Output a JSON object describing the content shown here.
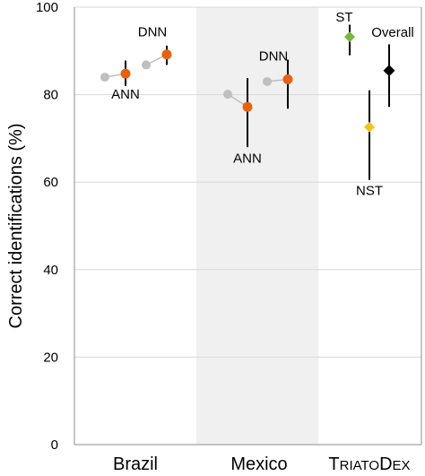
{
  "chart_data": {
    "type": "scatter",
    "ylabel": "Correct identifications (%)",
    "ylim": [
      0,
      100
    ],
    "yticks": [
      0,
      20,
      40,
      60,
      80,
      100
    ],
    "grid": true,
    "categories": [
      "Brazil",
      "Mexico",
      "TriatoDex"
    ],
    "highlighted_category": "Mexico",
    "highlight_color": "#f0f0f0",
    "colors": {
      "reference": "#bfbfbf",
      "model": "#e8620e",
      "st": "#77b83a",
      "nst": "#f2c21b",
      "overall": "#000000"
    },
    "points": [
      {
        "category": "Brazil",
        "model": "ANN",
        "value": 84.0,
        "kind": "reference"
      },
      {
        "category": "Brazil",
        "model": "ANN",
        "value": 84.8,
        "err_low": 82.0,
        "err_high": 87.8,
        "kind": "model",
        "label": "ANN"
      },
      {
        "category": "Brazil",
        "model": "DNN",
        "value": 86.8,
        "kind": "reference"
      },
      {
        "category": "Brazil",
        "model": "DNN",
        "value": 89.2,
        "err_low": 86.8,
        "err_high": 91.2,
        "kind": "model",
        "label": "DNN"
      },
      {
        "category": "Mexico",
        "model": "ANN",
        "value": 80.1,
        "kind": "reference"
      },
      {
        "category": "Mexico",
        "model": "ANN",
        "value": 77.2,
        "err_low": 68.0,
        "err_high": 83.8,
        "kind": "model",
        "label": "ANN"
      },
      {
        "category": "Mexico",
        "model": "DNN",
        "value": 83.0,
        "kind": "reference"
      },
      {
        "category": "Mexico",
        "model": "DNN",
        "value": 83.5,
        "err_low": 76.8,
        "err_high": 88.0,
        "kind": "model",
        "label": "DNN"
      },
      {
        "category": "TriatoDex",
        "model": "ST",
        "value": 93.2,
        "err_low": 89.0,
        "err_high": 96.0,
        "kind": "st",
        "label": "ST"
      },
      {
        "category": "TriatoDex",
        "model": "NST",
        "value": 72.6,
        "err_low": 60.5,
        "err_high": 81.0,
        "kind": "nst",
        "label": "NST"
      },
      {
        "category": "TriatoDex",
        "model": "Overall",
        "value": 85.5,
        "err_low": 77.2,
        "err_high": 91.5,
        "kind": "overall",
        "label": "Overall"
      }
    ]
  }
}
